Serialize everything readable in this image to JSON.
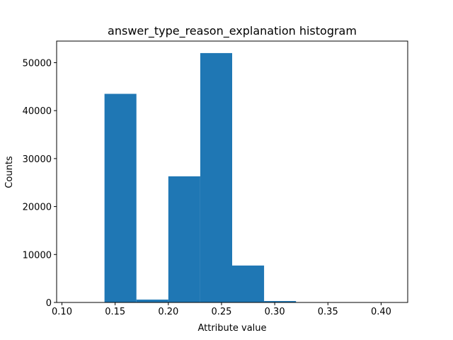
{
  "chart_data": {
    "type": "bar",
    "title": "answer_type_reason_explanation histogram",
    "xlabel": "Attribute value",
    "ylabel": "Counts",
    "xlim": [
      0.095,
      0.425
    ],
    "ylim": [
      0,
      54500
    ],
    "x_ticks": [
      "0.10",
      "0.15",
      "0.20",
      "0.25",
      "0.30",
      "0.35",
      "0.40"
    ],
    "y_ticks": [
      "0",
      "10000",
      "20000",
      "30000",
      "40000",
      "50000"
    ],
    "bins": [
      {
        "x0": 0.11,
        "x1": 0.14,
        "value": 0
      },
      {
        "x0": 0.14,
        "x1": 0.17,
        "value": 43500
      },
      {
        "x0": 0.17,
        "x1": 0.2,
        "value": 600
      },
      {
        "x0": 0.2,
        "x1": 0.23,
        "value": 26300
      },
      {
        "x0": 0.23,
        "x1": 0.26,
        "value": 52000
      },
      {
        "x0": 0.26,
        "x1": 0.29,
        "value": 7700
      },
      {
        "x0": 0.29,
        "x1": 0.32,
        "value": 300
      },
      {
        "x0": 0.32,
        "x1": 0.35,
        "value": 0
      },
      {
        "x0": 0.35,
        "x1": 0.38,
        "value": 0
      },
      {
        "x0": 0.38,
        "x1": 0.41,
        "value": 0
      }
    ],
    "bar_color": "#1f77b4",
    "grid": false,
    "legend": "none"
  }
}
